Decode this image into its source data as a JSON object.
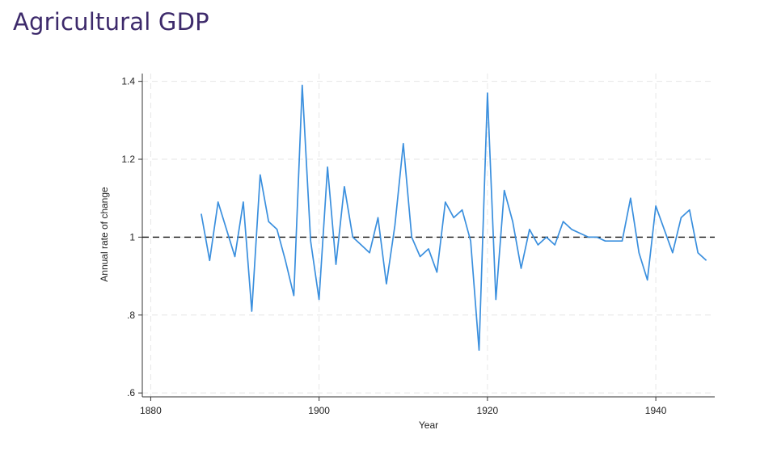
{
  "slide": {
    "title": "Agricultural GDP"
  },
  "chart_data": {
    "type": "line",
    "xlabel": "Year",
    "ylabel": "Annual rate of change",
    "xlim": [
      1879,
      1947
    ],
    "ylim": [
      0.59,
      1.42
    ],
    "xticks": [
      1880,
      1900,
      1920,
      1940
    ],
    "xtick_labels": [
      "1880",
      "1900",
      "1920",
      "1940"
    ],
    "yticks": [
      0.6,
      0.8,
      1.0,
      1.2,
      1.4
    ],
    "ytick_labels": [
      ".6",
      ".8",
      "1",
      "1.2",
      "1.4"
    ],
    "grid": "dashed light gray at ticks",
    "reference_line": {
      "y": 1.0,
      "style": "dashed",
      "color": "#111111"
    },
    "series": [
      {
        "color": "#3a8fde",
        "x": [
          1886,
          1887,
          1888,
          1889,
          1890,
          1891,
          1892,
          1893,
          1894,
          1895,
          1896,
          1897,
          1898,
          1899,
          1900,
          1901,
          1902,
          1903,
          1904,
          1905,
          1906,
          1907,
          1908,
          1909,
          1910,
          1911,
          1912,
          1913,
          1914,
          1915,
          1916,
          1917,
          1918,
          1919,
          1920,
          1921,
          1922,
          1923,
          1924,
          1925,
          1926,
          1927,
          1928,
          1929,
          1930,
          1931,
          1932,
          1933,
          1934,
          1935,
          1936,
          1937,
          1938,
          1939,
          1940,
          1941,
          1942,
          1943,
          1944,
          1945,
          1946
        ],
        "values": [
          1.06,
          0.94,
          1.09,
          1.02,
          0.95,
          1.09,
          0.81,
          1.16,
          1.04,
          1.02,
          0.94,
          0.85,
          1.39,
          0.99,
          0.84,
          1.18,
          0.93,
          1.13,
          1.0,
          0.98,
          0.96,
          1.05,
          0.88,
          1.03,
          1.24,
          1.0,
          0.95,
          0.97,
          0.91,
          1.09,
          1.05,
          1.07,
          0.99,
          0.71,
          1.37,
          0.84,
          1.12,
          1.04,
          0.92,
          1.02,
          0.98,
          1.0,
          0.98,
          1.04,
          1.02,
          1.01,
          1.0,
          1.0,
          0.99,
          0.99,
          0.99,
          1.1,
          0.96,
          0.89,
          1.08,
          1.02,
          0.96,
          1.05,
          1.07,
          0.96,
          0.94
        ]
      }
    ]
  }
}
